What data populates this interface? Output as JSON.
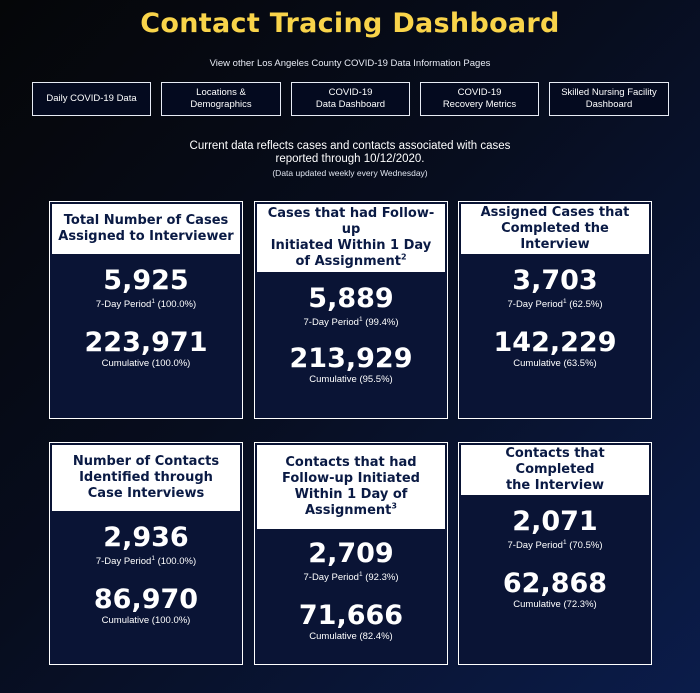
{
  "header": {
    "title": "Contact Tracing Dashboard",
    "subtitle": "View other Los Angeles County COVID-19 Data Information Pages"
  },
  "nav": [
    {
      "line1": "Daily COVID-19 Data",
      "line2": ""
    },
    {
      "line1": "Locations &",
      "line2": "Demographics"
    },
    {
      "line1": "COVID-19",
      "line2": "Data Dashboard"
    },
    {
      "line1": "COVID-19",
      "line2": "Recovery Metrics"
    },
    {
      "line1": "Skilled Nursing Facility",
      "line2": "Dashboard"
    }
  ],
  "info": {
    "line1": "Current data reflects cases and contacts associated with cases",
    "line2": "reported through 10/12/2020.",
    "note": "(Data updated weekly every Wednesday)"
  },
  "cards": [
    {
      "title_lines": [
        "Total Number of Cases",
        "Assigned to Interviewer"
      ],
      "footnote": "",
      "seven_day": "5,925",
      "seven_day_label": "7-Day Period",
      "seven_day_sup": "1",
      "seven_day_pct": "(100.0%)",
      "cumulative": "223,971",
      "cumulative_label": "Cumulative (100.0%)"
    },
    {
      "title_lines": [
        "Cases that had Follow-up",
        "Initiated Within 1 Day",
        "of Assignment"
      ],
      "footnote": "2",
      "seven_day": "5,889",
      "seven_day_label": "7-Day Period",
      "seven_day_sup": "1",
      "seven_day_pct": "(99.4%)",
      "cumulative": "213,929",
      "cumulative_label": "Cumulative (95.5%)"
    },
    {
      "title_lines": [
        "Assigned Cases that",
        "Completed the Interview"
      ],
      "footnote": "",
      "seven_day": "3,703",
      "seven_day_label": "7-Day Period",
      "seven_day_sup": "1",
      "seven_day_pct": "(62.5%)",
      "cumulative": "142,229",
      "cumulative_label": "Cumulative (63.5%)"
    },
    {
      "title_lines": [
        "Number of Contacts",
        "Identified through",
        "Case Interviews"
      ],
      "footnote": "",
      "seven_day": "2,936",
      "seven_day_label": "7-Day Period",
      "seven_day_sup": "1",
      "seven_day_pct": "(100.0%)",
      "cumulative": "86,970",
      "cumulative_label": "Cumulative (100.0%)"
    },
    {
      "title_lines": [
        "Contacts that had",
        "Follow-up Initiated",
        "Within 1 Day of",
        "Assignment"
      ],
      "footnote": "3",
      "seven_day": "2,709",
      "seven_day_label": "7-Day Period",
      "seven_day_sup": "1",
      "seven_day_pct": "(92.3%)",
      "cumulative": "71,666",
      "cumulative_label": "Cumulative (82.4%)"
    },
    {
      "title_lines": [
        "Contacts that Completed",
        "the Interview"
      ],
      "footnote": "",
      "seven_day": "2,071",
      "seven_day_label": "7-Day Period",
      "seven_day_sup": "1",
      "seven_day_pct": "(70.5%)",
      "cumulative": "62,868",
      "cumulative_label": "Cumulative (72.3%)"
    }
  ],
  "colors": {
    "title": "#f9d44a",
    "card_header_text": "#0a1a44",
    "card_background": "#0a1435",
    "page_background": "#070d1e"
  }
}
